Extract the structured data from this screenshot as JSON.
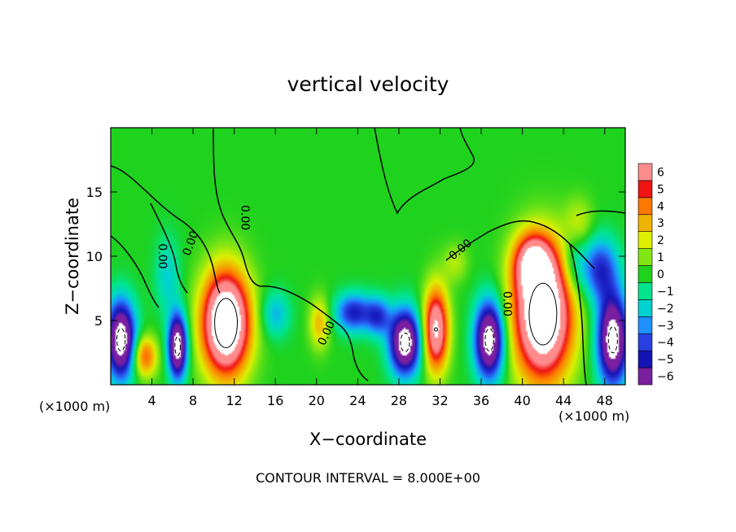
{
  "chart_data": {
    "type": "heatmap",
    "title": "vertical velocity",
    "xlabel": "X−coordinate",
    "ylabel": "Z−coordinate",
    "x_unit_left": "(×1000 m)",
    "x_unit_right": "(×1000 m)",
    "footer": "CONTOUR INTERVAL = 8.000E+00",
    "xlim": [
      0,
      50
    ],
    "ylim": [
      0,
      20
    ],
    "x_ticks": [
      4,
      8,
      12,
      16,
      20,
      24,
      28,
      32,
      36,
      40,
      44,
      48
    ],
    "y_ticks": [
      5,
      10,
      15
    ],
    "colorbar": {
      "levels": [
        -6,
        -5,
        -4,
        -3,
        -2,
        -1,
        0,
        1,
        2,
        3,
        4,
        5,
        6
      ],
      "labels": [
        "−6",
        "−5",
        "−4",
        "−3",
        "−2",
        "−1",
        "0",
        "1",
        "2",
        "3",
        "4",
        "5",
        "6"
      ],
      "colors": [
        "#7a1fa0",
        "#1414b4",
        "#2840e0",
        "#1e90ff",
        "#00d2d2",
        "#00e48c",
        "#1ed21e",
        "#82e614",
        "#dcf000",
        "#f0b400",
        "#ff7800",
        "#f01414",
        "#ff8c8c"
      ]
    },
    "contour_labels": [
      {
        "text": "0.00",
        "x": 5.0,
        "y": 10.0,
        "angle": 90
      },
      {
        "text": "0.00",
        "x": 7.8,
        "y": 11.0,
        "angle": -70
      },
      {
        "text": "0.00",
        "x": 13.0,
        "y": 13.0,
        "angle": 90
      },
      {
        "text": "0.00",
        "x": 21.0,
        "y": 4.0,
        "angle": -65
      },
      {
        "text": "0.00",
        "x": 34.0,
        "y": 10.5,
        "angle": -40
      },
      {
        "text": "0.00",
        "x": 38.5,
        "y": 6.3,
        "angle": 90
      }
    ],
    "features": [
      {
        "kind": "up",
        "x": 11.2,
        "z": 4.8,
        "rx": 2.3,
        "rz": 4.0,
        "peak": 11
      },
      {
        "kind": "up",
        "x": 42.0,
        "z": 5.5,
        "rx": 2.8,
        "rz": 5.0,
        "peak": 11
      },
      {
        "kind": "up",
        "x": 41.0,
        "z": 9.5,
        "rx": 1.8,
        "rz": 2.2,
        "peak": 6
      },
      {
        "kind": "up",
        "x": 31.6,
        "z": 4.3,
        "rx": 1.2,
        "rz": 3.2,
        "peak": 8
      },
      {
        "kind": "up",
        "x": 3.3,
        "z": 2.2,
        "rx": 1.2,
        "rz": 1.6,
        "peak": 4.5
      },
      {
        "kind": "up",
        "x": 20.3,
        "z": 4.8,
        "rx": 1.0,
        "rz": 2.0,
        "peak": 3
      },
      {
        "kind": "up",
        "x": 45.5,
        "z": 12.5,
        "rx": 1.4,
        "rz": 2.0,
        "peak": 1.8
      },
      {
        "kind": "up",
        "x": 33.5,
        "z": 9.5,
        "rx": 1.2,
        "rz": 1.5,
        "peak": 1.5
      },
      {
        "kind": "down",
        "x": 1.0,
        "z": 3.5,
        "rx": 1.4,
        "rz": 3.0,
        "peak": 9
      },
      {
        "kind": "down",
        "x": 6.5,
        "z": 3.0,
        "rx": 0.9,
        "rz": 2.5,
        "peak": 9
      },
      {
        "kind": "down",
        "x": 28.6,
        "z": 3.3,
        "rx": 1.5,
        "rz": 2.5,
        "peak": 9
      },
      {
        "kind": "down",
        "x": 36.8,
        "z": 3.5,
        "rx": 1.4,
        "rz": 3.0,
        "peak": 9
      },
      {
        "kind": "down",
        "x": 48.8,
        "z": 3.5,
        "rx": 1.5,
        "rz": 3.5,
        "peak": 9
      },
      {
        "kind": "down",
        "x": 23.6,
        "z": 5.6,
        "rx": 1.8,
        "rz": 1.5,
        "peak": 4.8
      },
      {
        "kind": "down",
        "x": 26.0,
        "z": 5.3,
        "rx": 1.2,
        "rz": 1.5,
        "peak": 3.8
      },
      {
        "kind": "down",
        "x": 16.0,
        "z": 5.5,
        "rx": 1.4,
        "rz": 1.8,
        "peak": 2.5
      },
      {
        "kind": "down",
        "x": 47.5,
        "z": 9.0,
        "rx": 1.8,
        "rz": 2.5,
        "peak": 4.5
      },
      {
        "kind": "down",
        "x": 5.5,
        "z": 8.5,
        "rx": 1.2,
        "rz": 3.0,
        "peak": 2.0
      },
      {
        "kind": "down",
        "x": 45.0,
        "z": 9.5,
        "rx": 1.2,
        "rz": 2.5,
        "peak": 2.0
      }
    ]
  }
}
